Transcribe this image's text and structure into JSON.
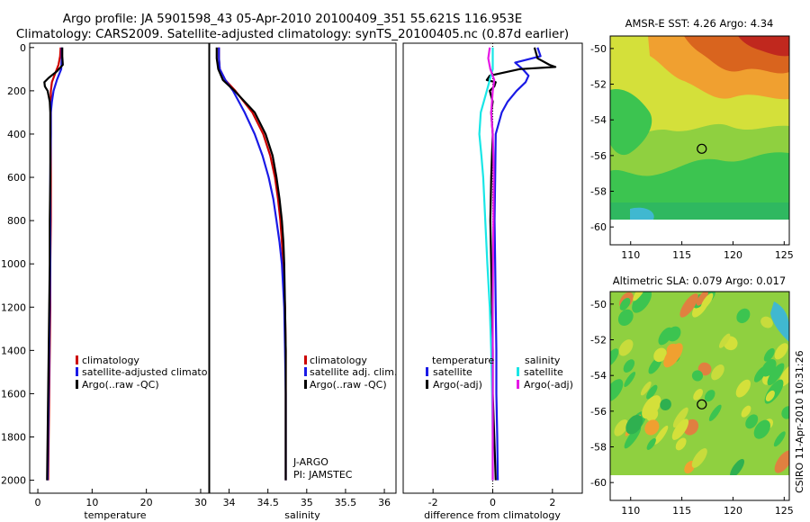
{
  "header": {
    "line1": "Argo profile: JA 5901598_43 05-Apr-2010 20100409_351 55.621S 116.953E",
    "line2": "Climatology: CARS2009. Satellite-adjusted climatology: synTS_20100405.nc (0.87d earlier)"
  },
  "footer_stamp": "CSIRO 11-Apr-2010 10:31:26",
  "chart_data": [
    {
      "type": "line",
      "panel": "temperature",
      "xlabel": "temperature",
      "ylabel": "",
      "xlim": [
        -1.5,
        31.5
      ],
      "ylim": [
        2060,
        -20
      ],
      "xticks": [
        "0",
        "10",
        "20",
        "30"
      ],
      "yticks": [
        "0",
        "200",
        "400",
        "600",
        "800",
        "1000",
        "1200",
        "1400",
        "1600",
        "1800",
        "2000"
      ],
      "legend": [
        "climatology",
        "satellite-adjusted climatolog",
        "Argo(..raw -QC)"
      ],
      "colors": {
        "climatology": "#cc0000",
        "satellite": "#1a1ae6",
        "argo": "#000000"
      },
      "series": [
        {
          "name": "climatology",
          "depth": [
            0,
            40,
            80,
            120,
            160,
            200,
            250,
            300,
            350,
            400,
            600,
            800,
            1000,
            1200,
            1400,
            1600,
            1800,
            2000
          ],
          "values": [
            4.2,
            4.1,
            3.8,
            3.2,
            2.6,
            2.4,
            2.4,
            2.4,
            2.4,
            2.4,
            2.4,
            2.4,
            2.3,
            2.3,
            2.2,
            2.1,
            2.0,
            1.9
          ]
        },
        {
          "name": "satellite-adjusted climatolog",
          "depth": [
            0,
            50,
            100,
            150,
            200,
            250,
            300,
            400,
            600,
            800,
            1000,
            1200,
            1400,
            1600,
            1800,
            2000
          ],
          "values": [
            4.4,
            4.4,
            4.3,
            3.5,
            2.9,
            2.6,
            2.4,
            2.4,
            2.3,
            2.3,
            2.3,
            2.2,
            2.1,
            2.0,
            1.9,
            1.8
          ]
        },
        {
          "name": "Argo(..raw -QC)",
          "depth": [
            0,
            40,
            80,
            110,
            140,
            160,
            180,
            200,
            250,
            300,
            400,
            600,
            800,
            1000,
            1200,
            1400,
            1600,
            1800,
            2000
          ],
          "values": [
            4.5,
            4.5,
            4.6,
            3.5,
            2.0,
            1.2,
            1.3,
            1.8,
            2.2,
            2.3,
            2.3,
            2.3,
            2.2,
            2.2,
            2.1,
            2.0,
            1.9,
            1.8,
            1.7
          ]
        }
      ]
    },
    {
      "type": "line",
      "panel": "salinity",
      "xlabel": "salinity",
      "xlim": [
        33.75,
        36.15
      ],
      "ylim": [
        2060,
        -20
      ],
      "xticks": [
        "34",
        "34.5",
        "35",
        "35.5",
        "36"
      ],
      "legend": [
        "climatology",
        "satellite adj. clim.",
        "Argo(..raw -QC)"
      ],
      "annotation": [
        "J-ARGO",
        "PI: JAMSTEC"
      ],
      "series": [
        {
          "name": "climatology",
          "depth": [
            0,
            50,
            100,
            150,
            200,
            300,
            400,
            500,
            600,
            700,
            800,
            900,
            1000,
            1200,
            1400,
            1600,
            1800,
            2000
          ],
          "values": [
            33.87,
            33.87,
            33.88,
            33.95,
            34.08,
            34.3,
            34.44,
            34.53,
            34.59,
            34.63,
            34.66,
            34.68,
            34.7,
            34.72,
            34.73,
            34.73,
            34.73,
            34.73
          ]
        },
        {
          "name": "satellite adj. clim.",
          "depth": [
            0,
            50,
            100,
            150,
            200,
            300,
            400,
            500,
            600,
            700,
            800,
            900,
            1000,
            1200,
            1400,
            1600,
            1800,
            2000
          ],
          "values": [
            33.87,
            33.87,
            33.88,
            33.95,
            34.05,
            34.2,
            34.33,
            34.43,
            34.51,
            34.57,
            34.61,
            34.65,
            34.68,
            34.71,
            34.72,
            34.73,
            34.73,
            34.73
          ]
        },
        {
          "name": "Argo(..raw -QC)",
          "depth": [
            0,
            50,
            100,
            150,
            200,
            300,
            400,
            500,
            600,
            700,
            800,
            900,
            1000,
            1200,
            1400,
            1600,
            1800,
            2000
          ],
          "values": [
            33.84,
            33.84,
            33.86,
            33.92,
            34.07,
            34.33,
            34.47,
            34.56,
            34.61,
            34.65,
            34.68,
            34.7,
            34.71,
            34.72,
            34.73,
            34.73,
            34.73,
            34.73
          ]
        }
      ]
    },
    {
      "type": "line",
      "panel": "difference",
      "xlabel": "difference from climatology",
      "xlim": [
        -3.0,
        3.0
      ],
      "ylim": [
        2060,
        -20
      ],
      "xticks": [
        "-2",
        "0",
        "2"
      ],
      "legend_titles": [
        "temperature",
        "salinity"
      ],
      "legend": [
        "satellite",
        "Argo(-adj)",
        "satellite",
        "Argo(-adj)"
      ],
      "series": [
        {
          "name": "temperature satellite",
          "color": "#1a1ae6",
          "depth": [
            0,
            40,
            70,
            100,
            130,
            160,
            200,
            250,
            300,
            400,
            600,
            800,
            1000,
            1200,
            1400,
            1600,
            1800,
            2000
          ],
          "values": [
            1.5,
            1.6,
            0.75,
            1.0,
            1.2,
            1.1,
            0.8,
            0.5,
            0.3,
            0.1,
            0.08,
            0.06,
            0.08,
            0.1,
            0.12,
            0.12,
            0.15,
            0.17
          ]
        },
        {
          "name": "temperature Argo(-adj)",
          "color": "#000000",
          "depth": [
            0,
            50,
            80,
            90,
            100,
            130,
            150,
            160,
            180,
            200,
            250,
            300,
            400,
            600,
            800,
            1000,
            1200,
            1400,
            1600,
            1800,
            2000
          ],
          "values": [
            1.4,
            1.5,
            1.9,
            2.1,
            0.9,
            -0.1,
            -0.2,
            0.1,
            0.05,
            -0.1,
            0.0,
            -0.05,
            0.0,
            -0.05,
            -0.08,
            -0.05,
            -0.03,
            0.0,
            0.0,
            0.05,
            0.1
          ]
        },
        {
          "name": "salinity satellite",
          "color": "#19e6e6",
          "depth": [
            0,
            100,
            150,
            200,
            300,
            400,
            500,
            600,
            800,
            1000,
            1200,
            1400,
            1600,
            1800,
            2000
          ],
          "values": [
            0.0,
            0.0,
            -0.1,
            -0.2,
            -0.4,
            -0.45,
            -0.38,
            -0.32,
            -0.25,
            -0.18,
            -0.1,
            -0.05,
            -0.02,
            0.0,
            0.0
          ]
        },
        {
          "name": "salinity Argo(-adj)",
          "color": "#e619e6",
          "depth": [
            0,
            50,
            100,
            150,
            200,
            300,
            400,
            500,
            600,
            800,
            1000,
            1200,
            1400,
            1600,
            1800,
            2000
          ],
          "values": [
            -0.1,
            -0.15,
            -0.08,
            0.05,
            0.0,
            -0.05,
            0.0,
            0.02,
            0.03,
            0.02,
            0.01,
            0.0,
            0.0,
            0.0,
            0.0,
            0.0
          ]
        }
      ]
    },
    {
      "type": "heatmap",
      "panel": "sst",
      "title": "AMSR-E SST: 4.26 Argo: 4.34",
      "xlim": [
        108,
        125.5
      ],
      "ylim": [
        -61,
        -49.3
      ],
      "xticks": [
        "110",
        "115",
        "120",
        "125"
      ],
      "yticks": [
        "-50",
        "-52",
        "-54",
        "-56",
        "-58",
        "-60"
      ],
      "marker": {
        "lon": 116.95,
        "lat": -55.62
      }
    },
    {
      "type": "heatmap",
      "panel": "sla",
      "title": "Altimetric SLA: 0.079 Argo: 0.017",
      "xlim": [
        108,
        125.5
      ],
      "ylim": [
        -61,
        -49.3
      ],
      "xticks": [
        "110",
        "115",
        "120",
        "125"
      ],
      "yticks": [
        "-50",
        "-52",
        "-54",
        "-56",
        "-58",
        "-60"
      ],
      "marker": {
        "lon": 116.95,
        "lat": -55.62
      }
    }
  ]
}
